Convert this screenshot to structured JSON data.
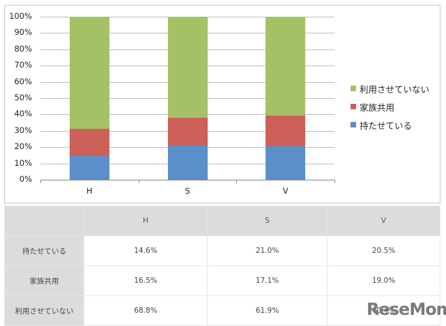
{
  "chart_data": {
    "type": "bar",
    "stacked": true,
    "percent_stacked": true,
    "categories": [
      "H",
      "S",
      "V"
    ],
    "series": [
      {
        "name": "持たせている",
        "color": "#5b8fc9",
        "values": [
          14.6,
          21.0,
          20.5
        ]
      },
      {
        "name": "家族共用",
        "color": "#cd5f59",
        "values": [
          16.5,
          17.1,
          19.0
        ]
      },
      {
        "name": "利用させていない",
        "color": "#a4c165",
        "values": [
          68.8,
          61.9,
          60.4
        ]
      }
    ],
    "yticks": [
      "0%",
      "10%",
      "20%",
      "30%",
      "40%",
      "50%",
      "60%",
      "70%",
      "80%",
      "90%",
      "100%"
    ],
    "ylim": [
      0,
      100
    ],
    "grid": true,
    "legend_position": "right",
    "legend_order": [
      "利用させていない",
      "家族共用",
      "持たせている"
    ],
    "title": "",
    "xlabel": "",
    "ylabel": ""
  },
  "table": {
    "headers": [
      "",
      "H",
      "S",
      "V"
    ],
    "rows": [
      {
        "label": "持たせている",
        "cells": [
          "14.6%",
          "21.0%",
          "20.5%"
        ]
      },
      {
        "label": "家族共用",
        "cells": [
          "16.5%",
          "17.1%",
          "19.0%"
        ]
      },
      {
        "label": "利用させていない",
        "cells": [
          "68.8%",
          "61.9%",
          "60.4%"
        ]
      }
    ]
  },
  "watermark": {
    "text": "ReseMom"
  }
}
